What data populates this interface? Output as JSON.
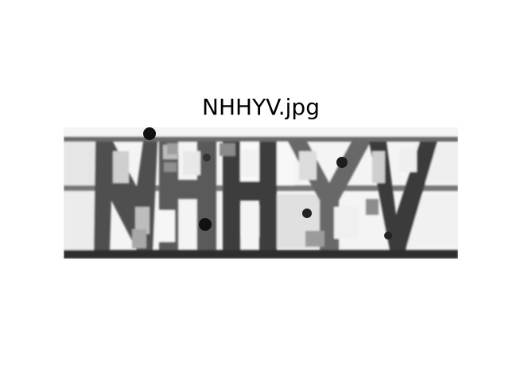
{
  "figure": {
    "title": "NHHYV.jpg"
  },
  "image": {
    "captcha_text": "NHHYV",
    "colors": {
      "background": "#ffffff",
      "light_block": "#f2f2f2",
      "mid_gray": "#9a9a9a",
      "dark_gray": "#555555",
      "near_black": "#1a1a1a"
    }
  }
}
